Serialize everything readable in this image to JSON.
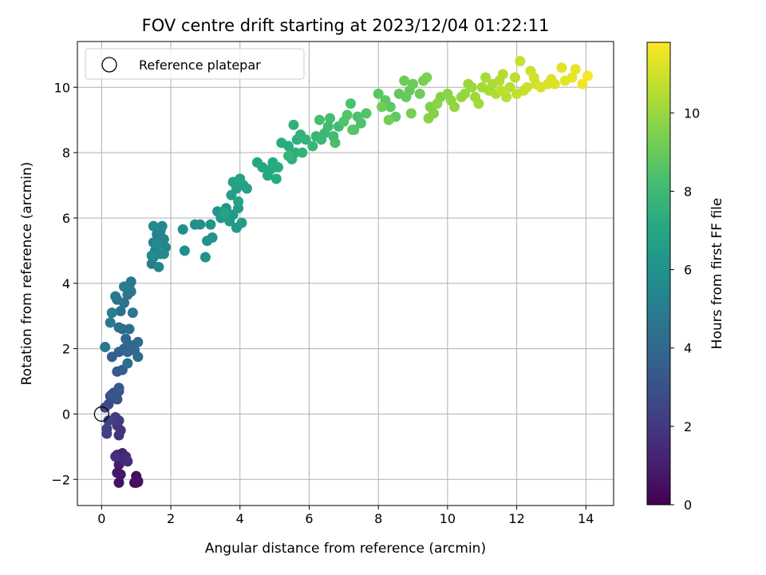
{
  "chart_data": {
    "type": "scatter",
    "title": "FOV centre drift starting at 2023/12/04 01:22:11",
    "xlabel": "Angular distance from reference (arcmin)",
    "ylabel": "Rotation from reference (arcmin)",
    "xlim": [
      -0.7,
      14.8
    ],
    "ylim": [
      -2.8,
      11.4
    ],
    "xticks": [
      0,
      2,
      4,
      6,
      8,
      10,
      12,
      14
    ],
    "yticks": [
      -2,
      0,
      2,
      4,
      6,
      8,
      10
    ],
    "grid": true,
    "legend": {
      "placement": "top-left",
      "entries": [
        "Reference platepar"
      ]
    },
    "reference_point": {
      "x": 0,
      "y": 0,
      "label": "Reference platepar"
    },
    "colorbar": {
      "label": "Hours from first FF file",
      "range": [
        0,
        11.8
      ],
      "ticks": [
        0,
        2,
        4,
        6,
        8,
        10
      ],
      "colormap": "viridis"
    },
    "points_xyc": [
      [
        1.0,
        -2.1,
        0.1
      ],
      [
        1.05,
        -2.05,
        0.2
      ],
      [
        0.95,
        -2.1,
        0.3
      ],
      [
        1.0,
        -1.9,
        0.4
      ],
      [
        1.05,
        -2.08,
        0.5
      ],
      [
        0.5,
        -2.1,
        0.6
      ],
      [
        0.55,
        -1.85,
        0.7
      ],
      [
        0.45,
        -1.8,
        0.8
      ],
      [
        0.5,
        -1.55,
        0.9
      ],
      [
        0.55,
        -1.45,
        1.0
      ],
      [
        0.45,
        -1.25,
        1.1
      ],
      [
        0.6,
        -1.2,
        1.2
      ],
      [
        0.65,
        -1.4,
        1.3
      ],
      [
        0.7,
        -1.3,
        1.4
      ],
      [
        0.75,
        -1.45,
        1.5
      ],
      [
        0.4,
        -1.3,
        1.6
      ],
      [
        0.5,
        -0.65,
        1.7
      ],
      [
        0.55,
        -0.5,
        1.8
      ],
      [
        0.45,
        -0.35,
        1.9
      ],
      [
        0.5,
        -0.2,
        2.0
      ],
      [
        0.4,
        -0.1,
        2.1
      ],
      [
        0.15,
        -0.6,
        2.2
      ],
      [
        0.15,
        -0.45,
        2.3
      ],
      [
        0.2,
        -0.2,
        2.4
      ],
      [
        0.1,
        0.2,
        2.5
      ],
      [
        0.2,
        0.3,
        2.6
      ],
      [
        0.25,
        0.55,
        2.7
      ],
      [
        0.35,
        0.65,
        2.8
      ],
      [
        0.45,
        0.45,
        2.9
      ],
      [
        0.5,
        0.7,
        3.0
      ],
      [
        0.4,
        0.55,
        3.1
      ],
      [
        0.3,
        0.6,
        3.2
      ],
      [
        0.5,
        0.8,
        3.3
      ],
      [
        0.45,
        1.3,
        3.4
      ],
      [
        0.6,
        1.35,
        3.5
      ],
      [
        0.3,
        1.75,
        3.6
      ],
      [
        0.5,
        1.9,
        3.7
      ],
      [
        0.65,
        2.0,
        3.8
      ],
      [
        0.7,
        2.3,
        3.9
      ],
      [
        0.6,
        2.6,
        3.95
      ],
      [
        0.75,
        1.9,
        4.0
      ],
      [
        0.85,
        2.1,
        4.05
      ],
      [
        0.95,
        1.95,
        4.1
      ],
      [
        1.05,
        2.2,
        4.15
      ],
      [
        1.05,
        1.75,
        4.2
      ],
      [
        0.75,
        1.55,
        4.25
      ],
      [
        0.8,
        2.6,
        4.3
      ],
      [
        0.5,
        2.65,
        4.35
      ],
      [
        0.55,
        3.15,
        4.4
      ],
      [
        0.45,
        3.5,
        4.45
      ],
      [
        0.65,
        3.4,
        4.5
      ],
      [
        0.75,
        3.65,
        4.55
      ],
      [
        0.85,
        3.75,
        4.6
      ],
      [
        0.8,
        3.9,
        4.65
      ],
      [
        0.85,
        4.05,
        4.7
      ],
      [
        0.9,
        3.1,
        4.75
      ],
      [
        0.4,
        3.6,
        4.8
      ],
      [
        0.25,
        2.8,
        4.85
      ],
      [
        0.1,
        2.05,
        4.9
      ],
      [
        0.65,
        3.9,
        4.95
      ],
      [
        0.3,
        3.1,
        5.0
      ],
      [
        1.45,
        4.6,
        5.0
      ],
      [
        1.5,
        4.8,
        5.05
      ],
      [
        1.55,
        5.0,
        5.1
      ],
      [
        1.5,
        5.25,
        5.15
      ],
      [
        1.6,
        5.5,
        5.2
      ],
      [
        1.7,
        5.6,
        5.25
      ],
      [
        1.8,
        5.35,
        5.3
      ],
      [
        1.7,
        4.9,
        5.35
      ],
      [
        1.85,
        5.1,
        5.4
      ],
      [
        1.65,
        4.5,
        5.45
      ],
      [
        1.5,
        5.75,
        5.5
      ],
      [
        1.75,
        5.75,
        5.55
      ],
      [
        1.6,
        5.2,
        5.6
      ],
      [
        1.8,
        4.9,
        5.65
      ],
      [
        1.45,
        4.85,
        5.7
      ],
      [
        2.35,
        5.65,
        5.8
      ],
      [
        2.4,
        5.0,
        5.85
      ],
      [
        2.7,
        5.8,
        5.9
      ],
      [
        2.85,
        5.8,
        5.95
      ],
      [
        3.0,
        4.8,
        6.0
      ],
      [
        3.05,
        5.3,
        6.05
      ],
      [
        3.2,
        5.4,
        6.1
      ],
      [
        3.15,
        5.8,
        6.15
      ],
      [
        3.35,
        6.2,
        6.2
      ],
      [
        3.45,
        6.0,
        6.25
      ],
      [
        3.6,
        6.3,
        6.3
      ],
      [
        3.7,
        5.9,
        6.35
      ],
      [
        3.8,
        6.1,
        6.4
      ],
      [
        3.9,
        5.7,
        6.45
      ],
      [
        4.05,
        5.85,
        6.5
      ],
      [
        3.95,
        6.3,
        6.55
      ],
      [
        3.75,
        6.7,
        6.6
      ],
      [
        3.9,
        6.9,
        6.65
      ],
      [
        4.1,
        7.0,
        6.7
      ],
      [
        4.2,
        6.9,
        6.75
      ],
      [
        3.8,
        7.1,
        6.8
      ],
      [
        4.0,
        7.2,
        6.85
      ],
      [
        3.95,
        6.5,
        6.9
      ],
      [
        3.55,
        6.15,
        6.95
      ],
      [
        4.5,
        7.7,
        7.0
      ],
      [
        4.65,
        7.55,
        7.05
      ],
      [
        4.8,
        7.3,
        7.1
      ],
      [
        4.9,
        7.5,
        7.15
      ],
      [
        5.05,
        7.2,
        7.2
      ],
      [
        5.1,
        7.55,
        7.25
      ],
      [
        4.95,
        7.7,
        7.3
      ],
      [
        5.2,
        8.3,
        7.35
      ],
      [
        5.4,
        8.2,
        7.4
      ],
      [
        5.5,
        7.8,
        7.45
      ],
      [
        5.6,
        8.0,
        7.5
      ],
      [
        5.65,
        8.4,
        7.55
      ],
      [
        5.55,
        8.85,
        7.6
      ],
      [
        5.75,
        8.55,
        7.65
      ],
      [
        5.8,
        8.0,
        7.7
      ],
      [
        5.9,
        8.4,
        7.75
      ],
      [
        5.4,
        7.9,
        7.8
      ],
      [
        6.1,
        8.2,
        7.85
      ],
      [
        6.2,
        8.5,
        7.9
      ],
      [
        6.35,
        8.4,
        7.95
      ],
      [
        6.45,
        8.6,
        8.0
      ],
      [
        6.55,
        8.8,
        8.05
      ],
      [
        6.7,
        8.5,
        8.1
      ],
      [
        6.85,
        8.8,
        8.15
      ],
      [
        6.6,
        9.05,
        8.2
      ],
      [
        6.3,
        9.0,
        8.25
      ],
      [
        6.75,
        8.3,
        8.3
      ],
      [
        7.2,
        9.5,
        8.35
      ],
      [
        7.4,
        9.1,
        8.4
      ],
      [
        7.5,
        8.9,
        8.45
      ],
      [
        7.3,
        8.7,
        8.5
      ],
      [
        7.0,
        8.95,
        8.55
      ],
      [
        7.1,
        9.15,
        8.6
      ],
      [
        7.65,
        9.2,
        8.65
      ],
      [
        7.25,
        8.7,
        8.7
      ],
      [
        8.0,
        9.8,
        8.75
      ],
      [
        8.2,
        9.6,
        8.8
      ],
      [
        8.35,
        9.4,
        8.85
      ],
      [
        8.5,
        9.1,
        8.9
      ],
      [
        8.6,
        9.8,
        8.95
      ],
      [
        8.8,
        9.7,
        9.0
      ],
      [
        8.9,
        9.9,
        9.05
      ],
      [
        9.0,
        10.1,
        9.1
      ],
      [
        8.75,
        10.2,
        9.15
      ],
      [
        9.2,
        9.8,
        9.2
      ],
      [
        8.1,
        9.4,
        9.25
      ],
      [
        8.3,
        9.0,
        9.3
      ],
      [
        8.95,
        9.2,
        9.35
      ],
      [
        9.3,
        10.2,
        9.4
      ],
      [
        9.4,
        10.3,
        9.45
      ],
      [
        9.5,
        9.4,
        9.5
      ],
      [
        9.6,
        9.2,
        9.55
      ],
      [
        9.8,
        9.7,
        9.6
      ],
      [
        9.45,
        9.05,
        9.65
      ],
      [
        9.7,
        9.5,
        9.7
      ],
      [
        10.0,
        9.8,
        9.75
      ],
      [
        10.1,
        9.6,
        9.8
      ],
      [
        10.2,
        9.4,
        9.85
      ],
      [
        10.4,
        9.7,
        9.9
      ],
      [
        10.5,
        9.8,
        9.95
      ],
      [
        10.7,
        10.0,
        10.0
      ],
      [
        10.6,
        10.1,
        10.05
      ],
      [
        10.8,
        9.7,
        10.1
      ],
      [
        10.9,
        9.5,
        10.15
      ],
      [
        11.0,
        10.0,
        10.2
      ],
      [
        11.1,
        10.3,
        10.25
      ],
      [
        11.2,
        9.9,
        10.3
      ],
      [
        11.3,
        10.1,
        10.35
      ],
      [
        11.4,
        9.8,
        10.4
      ],
      [
        11.5,
        10.2,
        10.45
      ],
      [
        11.6,
        10.4,
        10.5
      ],
      [
        11.7,
        9.7,
        10.55
      ],
      [
        11.8,
        10.0,
        10.6
      ],
      [
        11.95,
        10.3,
        10.65
      ],
      [
        11.55,
        9.9,
        10.7
      ],
      [
        12.0,
        9.8,
        10.75
      ],
      [
        12.1,
        10.8,
        10.8
      ],
      [
        12.2,
        9.9,
        10.85
      ],
      [
        12.3,
        10.0,
        10.9
      ],
      [
        12.4,
        10.5,
        10.95
      ],
      [
        12.5,
        10.3,
        11.0
      ],
      [
        12.55,
        10.1,
        11.05
      ],
      [
        12.7,
        10.0,
        11.1
      ],
      [
        12.9,
        10.1,
        11.15
      ],
      [
        13.0,
        10.25,
        11.2
      ],
      [
        13.1,
        10.1,
        11.25
      ],
      [
        13.3,
        10.6,
        11.3
      ],
      [
        13.4,
        10.2,
        11.35
      ],
      [
        13.6,
        10.3,
        11.4
      ],
      [
        13.7,
        10.55,
        11.45
      ],
      [
        13.9,
        10.1,
        11.55
      ],
      [
        14.05,
        10.35,
        11.65
      ]
    ]
  }
}
